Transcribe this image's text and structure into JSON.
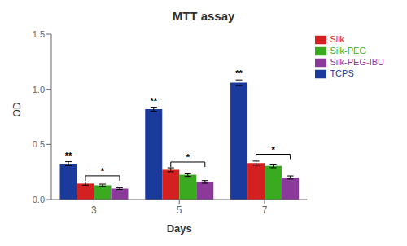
{
  "chart_data": {
    "type": "bar",
    "title": "MTT assay",
    "x_label": "Days",
    "y_label": "OD",
    "categories": [
      "3",
      "5",
      "7"
    ],
    "series": [
      {
        "name": "TCPS",
        "color": "#1a3a9c",
        "values": [
          0.325,
          0.82,
          1.06
        ],
        "errors": [
          0.018,
          0.018,
          0.025
        ]
      },
      {
        "name": "Silk",
        "color": "#d42020",
        "values": [
          0.145,
          0.27,
          0.33
        ],
        "errors": [
          0.014,
          0.018,
          0.018
        ]
      },
      {
        "name": "Silk-PEG",
        "color": "#3aaa20",
        "values": [
          0.13,
          0.225,
          0.305
        ],
        "errors": [
          0.01,
          0.015,
          0.016
        ]
      },
      {
        "name": "Silk-PEG-IBU",
        "color": "#8b3a9c",
        "values": [
          0.1,
          0.16,
          0.2
        ],
        "errors": [
          0.008,
          0.012,
          0.014
        ]
      }
    ],
    "ylim": [
      0.0,
      1.5
    ],
    "yticks": [
      {
        "value": 0,
        "label": "0.0"
      },
      0.5,
      {
        "value": 1,
        "label": "1.0"
      },
      1.5
    ],
    "grid": false,
    "legend": "right",
    "annotations": [
      {
        "category": "3",
        "series": "TCPS",
        "text": "**"
      },
      {
        "category": "5",
        "series": "TCPS",
        "text": "**"
      },
      {
        "category": "7",
        "series": "TCPS",
        "text": "**"
      }
    ],
    "brackets": [
      {
        "category": "3",
        "from": "Silk",
        "to": "Silk-PEG-IBU",
        "y": 0.215,
        "label": "*"
      },
      {
        "category": "5",
        "from": "Silk",
        "to": "Silk-PEG-IBU",
        "y": 0.34,
        "label": "*"
      },
      {
        "category": "7",
        "from": "Silk",
        "to": "Silk-PEG-IBU",
        "y": 0.41,
        "label": "*"
      }
    ]
  }
}
